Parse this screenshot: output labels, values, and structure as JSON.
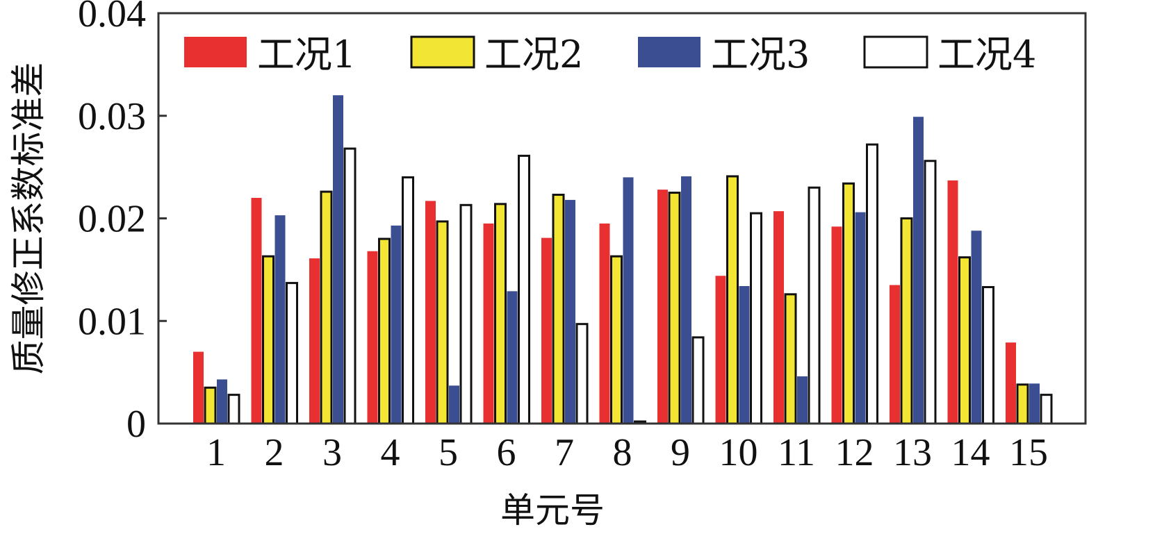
{
  "chart_data": {
    "type": "bar",
    "title": "",
    "xlabel": "单元号",
    "ylabel": "质量修正系数标准差",
    "categories": [
      "1",
      "2",
      "3",
      "4",
      "5",
      "6",
      "7",
      "8",
      "9",
      "10",
      "11",
      "12",
      "13",
      "14",
      "15"
    ],
    "ylim": [
      0,
      0.04
    ],
    "yticks": [
      "0",
      "0.01",
      "0.02",
      "0.03",
      "0.04"
    ],
    "legend_position": "top",
    "grid": false,
    "series": [
      {
        "name": "工况1",
        "color": "#e83030",
        "outline": false,
        "values": [
          0.007,
          0.022,
          0.0161,
          0.0168,
          0.0217,
          0.0195,
          0.0181,
          0.0195,
          0.0228,
          0.0144,
          0.0207,
          0.0192,
          0.0135,
          0.0237,
          0.0079
        ]
      },
      {
        "name": "工况2",
        "color": "#f2e534",
        "outline": true,
        "values": [
          0.0035,
          0.0163,
          0.0226,
          0.018,
          0.0197,
          0.0214,
          0.0223,
          0.0163,
          0.0225,
          0.0241,
          0.0126,
          0.0234,
          0.02,
          0.0162,
          0.0038
        ]
      },
      {
        "name": "工况3",
        "color": "#3b4e92",
        "outline": false,
        "values": [
          0.0043,
          0.0203,
          0.032,
          0.0193,
          0.0037,
          0.0129,
          0.0218,
          0.024,
          0.0241,
          0.0134,
          0.0046,
          0.0206,
          0.0299,
          0.0188,
          0.0039
        ]
      },
      {
        "name": "工况4",
        "color": "#ffffff",
        "outline": true,
        "values": [
          0.0028,
          0.0137,
          0.0268,
          0.024,
          0.0213,
          0.0261,
          0.0097,
          0.0002,
          0.0084,
          0.0205,
          0.023,
          0.0272,
          0.0256,
          0.0133,
          0.0028
        ]
      }
    ]
  }
}
